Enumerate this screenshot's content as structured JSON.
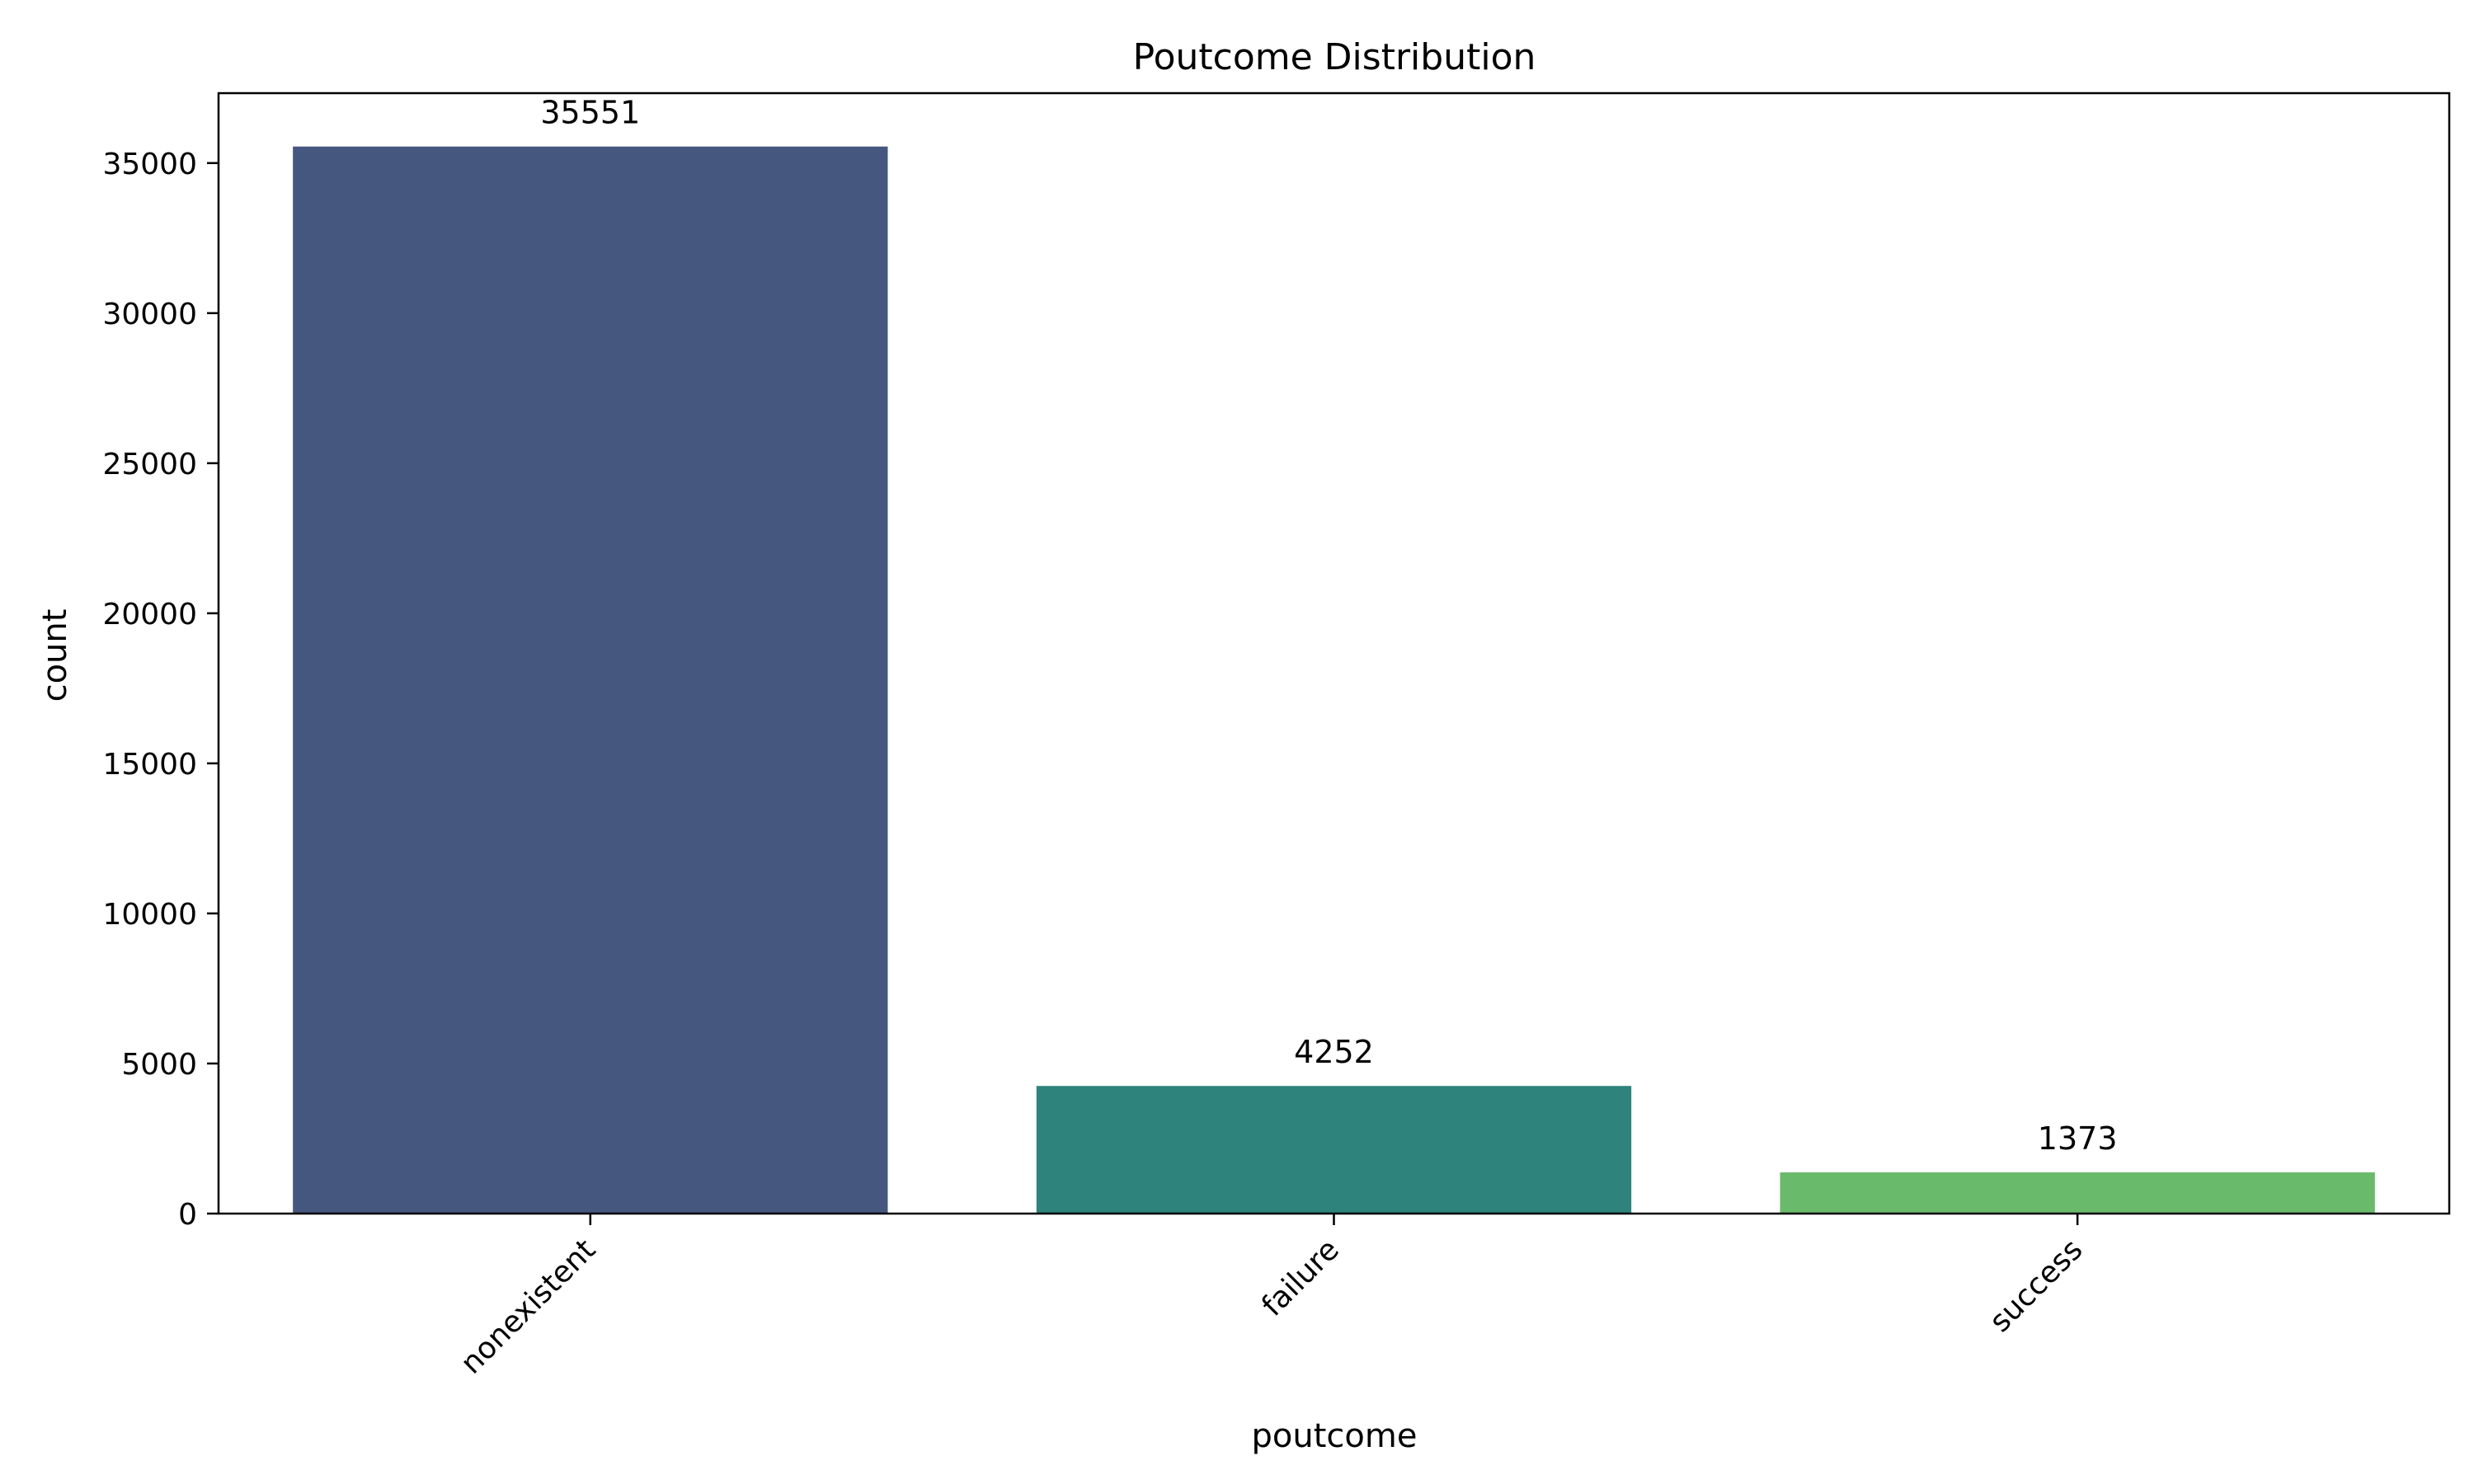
{
  "chart_data": {
    "type": "bar",
    "title": "Poutcome Distribution",
    "xlabel": "poutcome",
    "ylabel": "count",
    "categories": [
      "nonexistent",
      "failure",
      "success"
    ],
    "values": [
      35551,
      4252,
      1373
    ],
    "value_labels": [
      "35551",
      "4252",
      "1373"
    ],
    "colors": [
      "#46577f",
      "#2e837c",
      "#6aba6b"
    ],
    "ylim": [
      0,
      37329
    ],
    "yticks": [
      0,
      5000,
      10000,
      15000,
      20000,
      25000,
      30000,
      35000
    ],
    "ytick_labels": [
      "0",
      "5000",
      "10000",
      "15000",
      "20000",
      "25000",
      "30000",
      "35000"
    ],
    "grid": false,
    "legend": "none"
  }
}
